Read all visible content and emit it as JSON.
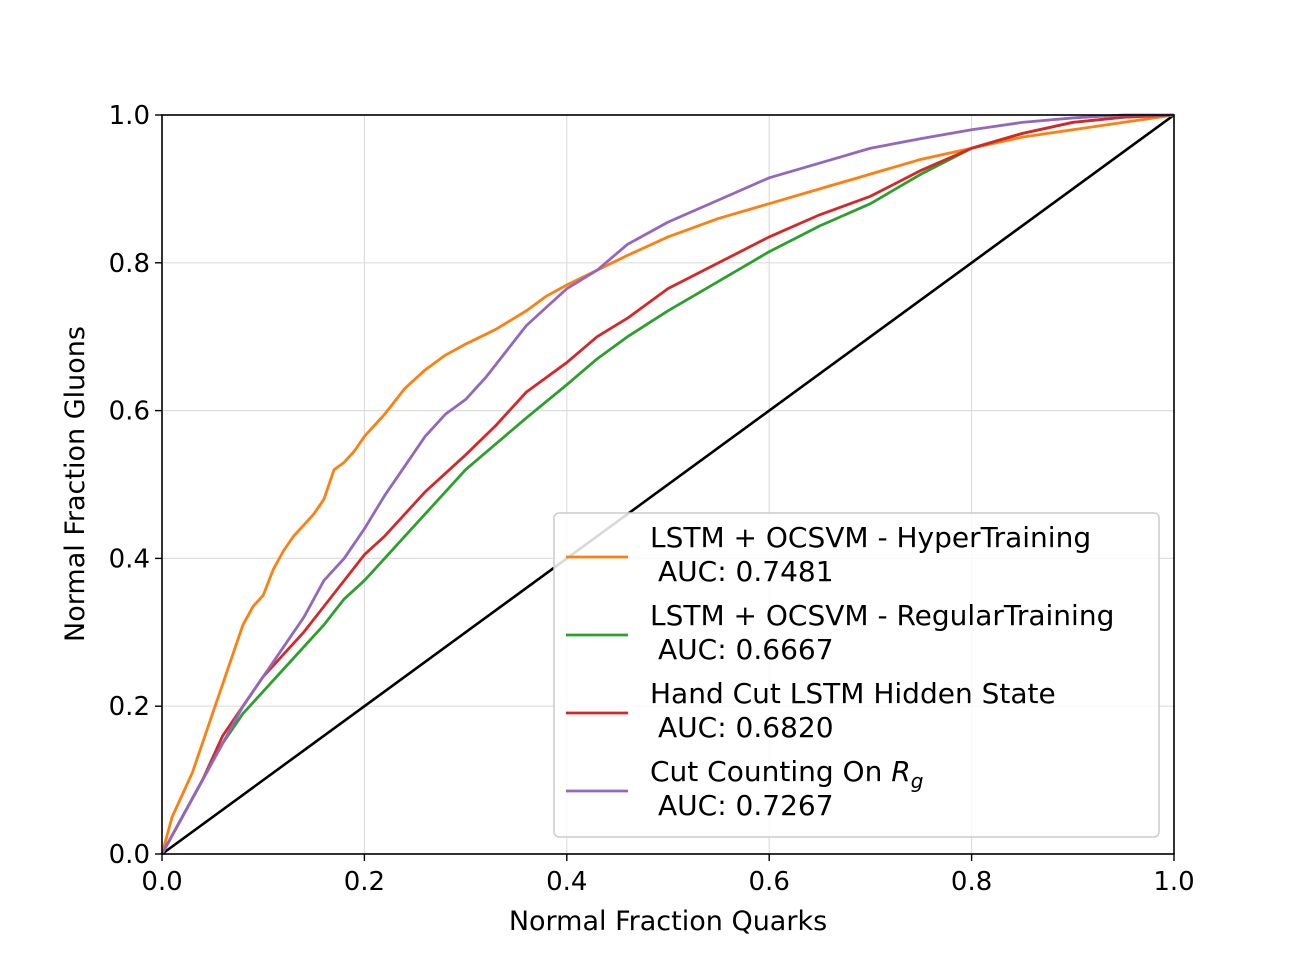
{
  "chart_data": {
    "type": "line",
    "title": "",
    "xlabel": "Normal Fraction Quarks",
    "ylabel": "Normal Fraction Gluons",
    "xlim": [
      0,
      1
    ],
    "ylim": [
      0,
      1
    ],
    "xticks": [
      "0.0",
      "0.2",
      "0.4",
      "0.6",
      "0.8",
      "1.0"
    ],
    "yticks": [
      "0.0",
      "0.2",
      "0.4",
      "0.6",
      "0.8",
      "1.0"
    ],
    "grid": true,
    "legend_position": "lower-right",
    "series": [
      {
        "name": "LSTM + OCSVM - HyperTraining",
        "auc": "AUC: 0.7481",
        "color": "#ff7f0e",
        "x": [
          0,
          0.01,
          0.02,
          0.03,
          0.04,
          0.05,
          0.06,
          0.07,
          0.08,
          0.09,
          0.1,
          0.11,
          0.12,
          0.13,
          0.14,
          0.15,
          0.16,
          0.17,
          0.18,
          0.19,
          0.2,
          0.22,
          0.24,
          0.26,
          0.28,
          0.3,
          0.33,
          0.36,
          0.38,
          0.4,
          0.43,
          0.46,
          0.5,
          0.55,
          0.6,
          0.65,
          0.7,
          0.75,
          0.8,
          0.85,
          0.9,
          0.95,
          1.0
        ],
        "y": [
          0,
          0.05,
          0.08,
          0.11,
          0.15,
          0.19,
          0.23,
          0.27,
          0.31,
          0.335,
          0.35,
          0.385,
          0.41,
          0.43,
          0.445,
          0.46,
          0.48,
          0.52,
          0.53,
          0.545,
          0.565,
          0.595,
          0.63,
          0.655,
          0.675,
          0.69,
          0.71,
          0.735,
          0.755,
          0.77,
          0.79,
          0.81,
          0.835,
          0.86,
          0.88,
          0.9,
          0.92,
          0.94,
          0.955,
          0.97,
          0.98,
          0.99,
          1.0
        ]
      },
      {
        "name": "LSTM + OCSVM - RegularTraining",
        "auc": "AUC: 0.6667",
        "color": "#2ca02c",
        "x": [
          0,
          0.02,
          0.04,
          0.06,
          0.08,
          0.1,
          0.12,
          0.14,
          0.16,
          0.18,
          0.2,
          0.22,
          0.24,
          0.26,
          0.28,
          0.3,
          0.33,
          0.36,
          0.4,
          0.43,
          0.46,
          0.5,
          0.55,
          0.6,
          0.65,
          0.7,
          0.75,
          0.8,
          0.85,
          0.9,
          0.95,
          1.0
        ],
        "y": [
          0,
          0.05,
          0.1,
          0.15,
          0.19,
          0.22,
          0.25,
          0.28,
          0.31,
          0.345,
          0.37,
          0.4,
          0.43,
          0.46,
          0.49,
          0.52,
          0.555,
          0.59,
          0.635,
          0.67,
          0.7,
          0.735,
          0.775,
          0.815,
          0.85,
          0.88,
          0.92,
          0.955,
          0.975,
          0.99,
          0.997,
          1.0
        ]
      },
      {
        "name": "Hand Cut LSTM Hidden State",
        "auc": "AUC: 0.6820",
        "color": "#d62728",
        "x": [
          0,
          0.02,
          0.04,
          0.06,
          0.08,
          0.1,
          0.12,
          0.14,
          0.16,
          0.18,
          0.2,
          0.22,
          0.24,
          0.26,
          0.28,
          0.3,
          0.33,
          0.36,
          0.4,
          0.43,
          0.46,
          0.5,
          0.55,
          0.6,
          0.65,
          0.7,
          0.75,
          0.8,
          0.85,
          0.9,
          0.95,
          1.0
        ],
        "y": [
          0,
          0.05,
          0.1,
          0.16,
          0.2,
          0.24,
          0.27,
          0.3,
          0.335,
          0.37,
          0.405,
          0.43,
          0.46,
          0.49,
          0.515,
          0.54,
          0.58,
          0.625,
          0.665,
          0.7,
          0.725,
          0.765,
          0.8,
          0.835,
          0.865,
          0.89,
          0.925,
          0.955,
          0.975,
          0.99,
          0.997,
          1.0
        ]
      },
      {
        "name": "Cut Counting On R_g",
        "auc": "AUC: 0.7267",
        "color": "#9467bd",
        "x": [
          0,
          0.02,
          0.04,
          0.06,
          0.08,
          0.1,
          0.12,
          0.14,
          0.16,
          0.18,
          0.2,
          0.22,
          0.24,
          0.26,
          0.28,
          0.3,
          0.32,
          0.34,
          0.36,
          0.38,
          0.4,
          0.43,
          0.46,
          0.5,
          0.55,
          0.6,
          0.65,
          0.7,
          0.75,
          0.8,
          0.85,
          0.9,
          0.95,
          1.0
        ],
        "y": [
          0,
          0.05,
          0.1,
          0.15,
          0.2,
          0.24,
          0.28,
          0.32,
          0.37,
          0.4,
          0.44,
          0.485,
          0.525,
          0.565,
          0.595,
          0.615,
          0.645,
          0.68,
          0.715,
          0.74,
          0.765,
          0.79,
          0.825,
          0.855,
          0.885,
          0.915,
          0.935,
          0.955,
          0.968,
          0.98,
          0.99,
          0.996,
          1.0,
          1.0
        ]
      }
    ],
    "reference_line": {
      "color": "#000000",
      "x": [
        0,
        1
      ],
      "y": [
        0,
        1
      ]
    }
  }
}
